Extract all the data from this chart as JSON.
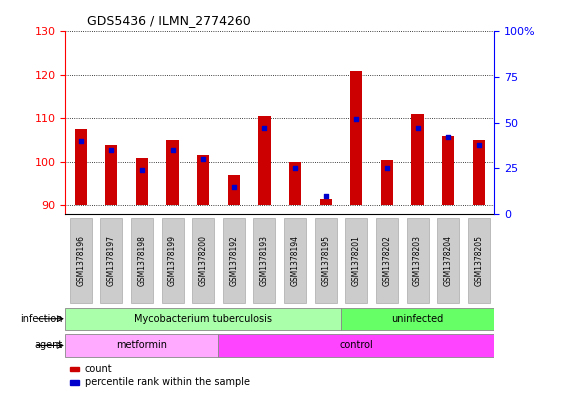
{
  "title": "GDS5436 / ILMN_2774260",
  "samples": [
    "GSM1378196",
    "GSM1378197",
    "GSM1378198",
    "GSM1378199",
    "GSM1378200",
    "GSM1378192",
    "GSM1378193",
    "GSM1378194",
    "GSM1378195",
    "GSM1378201",
    "GSM1378202",
    "GSM1378203",
    "GSM1378204",
    "GSM1378205"
  ],
  "count_values": [
    107.5,
    104.0,
    101.0,
    105.0,
    101.5,
    97.0,
    110.5,
    100.0,
    91.5,
    121.0,
    100.5,
    111.0,
    106.0,
    105.0
  ],
  "percentile_values": [
    40,
    35,
    24,
    35,
    30,
    15,
    47,
    25,
    10,
    52,
    25,
    47,
    42,
    38
  ],
  "ylim_left": [
    88,
    130
  ],
  "ylim_right": [
    0,
    100
  ],
  "yticks_left": [
    90,
    100,
    110,
    120,
    130
  ],
  "yticks_right": [
    0,
    25,
    50,
    75,
    100
  ],
  "bar_color": "#cc0000",
  "percentile_color": "#0000cc",
  "bar_bottom": 90,
  "bar_width": 0.4,
  "infection_groups": [
    {
      "label": "Mycobacterium tuberculosis",
      "start": 0,
      "end": 9,
      "color": "#aaffaa"
    },
    {
      "label": "uninfected",
      "start": 9,
      "end": 14,
      "color": "#66ff66"
    }
  ],
  "agent_groups": [
    {
      "label": "metformin",
      "start": 0,
      "end": 5,
      "color": "#ffaaff"
    },
    {
      "label": "control",
      "start": 5,
      "end": 14,
      "color": "#ff44ff"
    }
  ],
  "infection_label": "infection",
  "agent_label": "agent",
  "tick_bg_color": "#cccccc",
  "tick_edge_color": "#aaaaaa"
}
